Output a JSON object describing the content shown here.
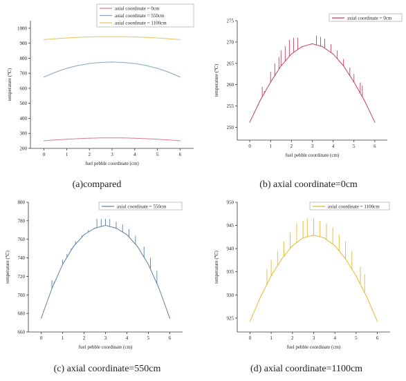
{
  "chart_data": [
    {
      "type": "line",
      "caption": "(a)compared",
      "xlabel": "fuel pebble coordinate (cm)",
      "ylabel": "temperature (℃)",
      "xlim": [
        -0.6,
        6.6
      ],
      "ylim": [
        200,
        1050
      ],
      "xticks": [
        0,
        1,
        2,
        3,
        4,
        5,
        6
      ],
      "yticks": [
        200,
        300,
        400,
        500,
        600,
        700,
        800,
        900,
        1000
      ],
      "legend": "top-center, inside",
      "series": [
        {
          "name": "axial coordinate = 0cm",
          "color": "#e07a90",
          "x": [
            0,
            0.5,
            1,
            1.5,
            2,
            2.5,
            3,
            3.5,
            4,
            4.5,
            5,
            5.5,
            6
          ],
          "values": [
            251,
            256,
            261,
            265,
            268,
            270,
            270,
            270,
            268,
            265,
            261,
            256,
            251
          ]
        },
        {
          "name": "axial coordinate = 550cm",
          "color": "#8aa6bd",
          "x": [
            0,
            0.5,
            1,
            1.5,
            2,
            2.5,
            3,
            3.5,
            4,
            4.5,
            5,
            5.5,
            6
          ],
          "values": [
            675,
            707,
            733,
            752,
            765,
            772,
            775,
            772,
            765,
            752,
            733,
            707,
            675
          ]
        },
        {
          "name": "axial coordinate = 1100cm",
          "color": "#e8c25a",
          "x": [
            0,
            0.5,
            1,
            1.5,
            2,
            2.5,
            3,
            3.5,
            4,
            4.5,
            5,
            5.5,
            6
          ],
          "values": [
            924,
            930,
            935,
            939,
            942,
            944,
            944,
            944,
            942,
            939,
            935,
            930,
            924
          ]
        }
      ]
    },
    {
      "type": "line",
      "caption": "(b) axial coordinate=0cm",
      "xlabel": "fuel pebble coordinate (cm)",
      "ylabel": "temperature (℃)",
      "xlim": [
        -0.6,
        6.6
      ],
      "ylim": [
        247,
        275
      ],
      "xticks": [
        0,
        1,
        2,
        3,
        4,
        5,
        6
      ],
      "yticks": [
        250,
        255,
        260,
        265,
        270,
        275
      ],
      "legend": "top-right, inside",
      "series": [
        {
          "name": "axial coordinate = 0cm",
          "color": "#c93f5c",
          "x": [
            0,
            0.5,
            1,
            1.5,
            2,
            2.5,
            3,
            3.5,
            4,
            4.5,
            5,
            5.5,
            6
          ],
          "values": [
            251.2,
            256.3,
            260.6,
            264.4,
            267.2,
            268.9,
            269.6,
            268.9,
            267.2,
            264.4,
            260.6,
            256.3,
            251.2
          ],
          "fluctuations": [
            [
              0.6,
              259.5
            ],
            [
              0.7,
              258.5
            ],
            [
              1.0,
              263
            ],
            [
              1.2,
              265
            ],
            [
              1.4,
              266.5
            ],
            [
              1.5,
              268
            ],
            [
              1.7,
              269
            ],
            [
              1.9,
              270.5
            ],
            [
              2.1,
              271
            ],
            [
              2.3,
              271
            ],
            [
              3.2,
              271.5
            ],
            [
              3.4,
              271.2
            ],
            [
              3.6,
              270.8
            ],
            [
              3.9,
              269.5
            ],
            [
              4.2,
              268
            ],
            [
              4.5,
              266
            ],
            [
              4.8,
              264
            ],
            [
              5.0,
              262.5
            ],
            [
              5.3,
              260.5
            ],
            [
              5.4,
              259.8
            ]
          ]
        }
      ]
    },
    {
      "type": "line",
      "caption": "(c) axial coordinate=550cm",
      "xlabel": "fuel pebble coordinate (cm)",
      "ylabel": "temperature (℃)",
      "xlim": [
        -0.6,
        6.6
      ],
      "ylim": [
        660,
        800
      ],
      "xticks": [
        0,
        1,
        2,
        3,
        4,
        5,
        6
      ],
      "yticks": [
        660,
        680,
        700,
        720,
        740,
        760,
        780,
        800
      ],
      "legend": "top-right, inside",
      "series": [
        {
          "name": "axial coordinate = 550cm",
          "color": "#5b7fa0",
          "x": [
            0,
            0.5,
            1,
            1.5,
            2,
            2.5,
            3,
            3.5,
            4,
            4.5,
            5,
            5.5,
            6
          ],
          "values": [
            675,
            707,
            733,
            752,
            765,
            772,
            775,
            772,
            765,
            752,
            733,
            707,
            675
          ],
          "fluctuations": [
            [
              0.5,
              716
            ],
            [
              0.6,
              714
            ],
            [
              1.0,
              738
            ],
            [
              1.2,
              744
            ],
            [
              1.4,
              750
            ],
            [
              1.6,
              758
            ],
            [
              1.9,
              764
            ],
            [
              2.2,
              770
            ],
            [
              2.6,
              782
            ],
            [
              2.8,
              782
            ],
            [
              3.0,
              782
            ],
            [
              3.2,
              782
            ],
            [
              3.5,
              779
            ],
            [
              3.8,
              776
            ],
            [
              4.1,
              771
            ],
            [
              4.4,
              764
            ],
            [
              4.8,
              752
            ],
            [
              5.1,
              740
            ],
            [
              5.4,
              726
            ]
          ]
        }
      ]
    },
    {
      "type": "line",
      "caption": "(d) axial coordinate=1100cm",
      "xlabel": "fuel pebble coordinate (cm)",
      "ylabel": "temperature (℃)",
      "xlim": [
        -0.6,
        6.6
      ],
      "ylim": [
        922,
        950
      ],
      "xticks": [
        0,
        1,
        2,
        3,
        4,
        5,
        6
      ],
      "yticks": [
        925,
        930,
        935,
        940,
        945,
        950
      ],
      "legend": "top-right, inside",
      "series": [
        {
          "name": "axial coordinate = 1100cm",
          "color": "#e6b830",
          "x": [
            0,
            0.5,
            1,
            1.5,
            2,
            2.5,
            3,
            3.5,
            4,
            4.5,
            5,
            5.5,
            6
          ],
          "values": [
            924.3,
            929.6,
            934.1,
            937.8,
            940.6,
            942.3,
            942.9,
            942.3,
            940.6,
            937.8,
            934.1,
            929.6,
            924.3
          ],
          "fluctuations": [
            [
              0.8,
              935.5
            ],
            [
              1.0,
              937.5
            ],
            [
              1.3,
              939.5
            ],
            [
              1.6,
              941.5
            ],
            [
              1.9,
              943.5
            ],
            [
              2.2,
              945.5
            ],
            [
              2.5,
              946
            ],
            [
              2.7,
              946.5
            ],
            [
              3.0,
              946.5
            ],
            [
              3.3,
              946
            ],
            [
              3.6,
              945.5
            ],
            [
              3.9,
              944.5
            ],
            [
              4.2,
              943
            ],
            [
              4.5,
              941.5
            ],
            [
              4.8,
              939.5
            ],
            [
              5.2,
              936
            ],
            [
              5.4,
              934.5
            ]
          ]
        }
      ]
    }
  ]
}
